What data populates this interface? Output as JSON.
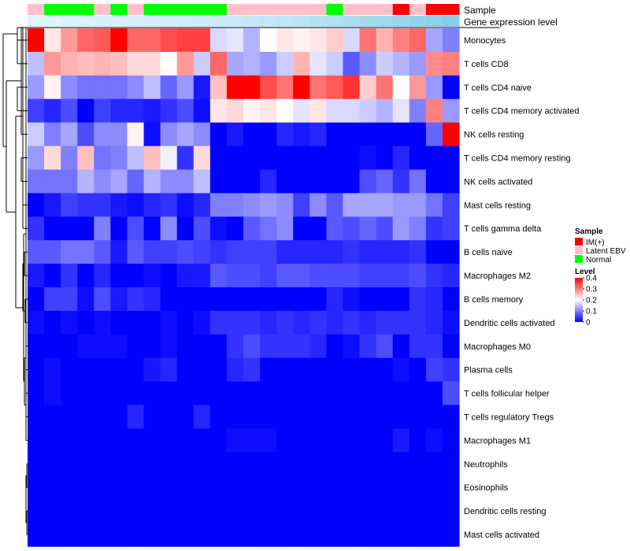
{
  "chart_data": {
    "type": "heatmap",
    "title": "",
    "annotation_tracks": [
      {
        "name": "Sample",
        "values": [
          "Latent EBV",
          "Normal",
          "Normal",
          "Normal",
          "Latent EBV",
          "Normal",
          "Latent EBV",
          "Normal",
          "Normal",
          "Normal",
          "Normal",
          "Normal",
          "Latent EBV",
          "Latent EBV",
          "Latent EBV",
          "Latent EBV",
          "Latent EBV",
          "Latent EBV",
          "Normal",
          "Latent EBV",
          "Latent EBV",
          "Latent EBV",
          "IM(+)",
          "Latent EBV",
          "IM(+)",
          "IM(+)"
        ]
      },
      {
        "name": "Gene expression level",
        "values": [
          0.05,
          0.06,
          0.08,
          0.09,
          0.1,
          0.12,
          0.13,
          0.15,
          0.16,
          0.18,
          0.2,
          0.22,
          0.24,
          0.26,
          0.3,
          0.33,
          0.36,
          0.4,
          0.45,
          0.5,
          0.55,
          0.6,
          0.65,
          0.7,
          0.75,
          0.8
        ]
      }
    ],
    "row_labels": [
      "Monocytes",
      "T cells CD8",
      "T cells CD4 naive",
      "T cells CD4 memory activated",
      "NK cells resting",
      "T cells CD4 memory resting",
      "NK cells activated",
      "Mast cells resting",
      "T cells gamma delta",
      "B cells naive",
      "Macrophages M2",
      "B cells memory",
      "Dendritic cells activated",
      "Macrophages M0",
      "Plasma cells",
      "T cells follicular helper",
      "T cells regulatory  Tregs",
      "Macrophages M1",
      "Neutrophils",
      "Eosinophils",
      "Dendritic cells resting",
      "Mast cells activated"
    ],
    "values": [
      [
        0.4,
        0.22,
        0.28,
        0.32,
        0.33,
        0.4,
        0.32,
        0.32,
        0.34,
        0.35,
        0.35,
        0.17,
        0.18,
        0.14,
        0.2,
        0.22,
        0.21,
        0.22,
        0.24,
        0.17,
        0.31,
        0.26,
        0.3,
        0.32,
        0.13,
        0.1
      ],
      [
        0.15,
        0.28,
        0.26,
        0.25,
        0.26,
        0.25,
        0.23,
        0.23,
        0.2,
        0.28,
        0.16,
        0.32,
        0.13,
        0.14,
        0.12,
        0.16,
        0.26,
        0.18,
        0.16,
        0.07,
        0.11,
        0.16,
        0.14,
        0.12,
        0.29,
        0.3
      ],
      [
        0.12,
        0.21,
        0.11,
        0.09,
        0.09,
        0.09,
        0.11,
        0.15,
        0.08,
        0.12,
        0.02,
        0.25,
        0.4,
        0.4,
        0.34,
        0.31,
        0.4,
        0.31,
        0.33,
        0.36,
        0.24,
        0.31,
        0.2,
        0.28,
        0.12,
        0.0
      ],
      [
        0.05,
        0.03,
        0.06,
        0.0,
        0.05,
        0.03,
        0.03,
        0.02,
        0.04,
        0.06,
        0.01,
        0.22,
        0.23,
        0.21,
        0.22,
        0.2,
        0.18,
        0.22,
        0.17,
        0.17,
        0.16,
        0.14,
        0.18,
        0.1,
        0.3,
        0.12
      ],
      [
        0.16,
        0.1,
        0.13,
        0.06,
        0.11,
        0.11,
        0.21,
        0.01,
        0.11,
        0.13,
        0.11,
        0.0,
        0.02,
        0.0,
        0.0,
        0.03,
        0.02,
        0.03,
        0.0,
        0.0,
        0.0,
        0.0,
        0.0,
        0.0,
        0.08,
        0.4
      ],
      [
        0.12,
        0.23,
        0.1,
        0.25,
        0.09,
        0.1,
        0.15,
        0.25,
        0.19,
        0.04,
        0.23,
        0.0,
        0.0,
        0.0,
        0.0,
        0.0,
        0.0,
        0.0,
        0.0,
        0.0,
        0.01,
        0.0,
        0.03,
        0.0,
        0.0,
        0.0
      ],
      [
        0.09,
        0.09,
        0.09,
        0.14,
        0.11,
        0.13,
        0.08,
        0.14,
        0.11,
        0.11,
        0.15,
        0.0,
        0.0,
        0.0,
        0.03,
        0.0,
        0.0,
        0.0,
        0.0,
        0.0,
        0.06,
        0.08,
        0.04,
        0.09,
        0.0,
        0.0
      ],
      [
        0.0,
        0.02,
        0.05,
        0.04,
        0.04,
        0.02,
        0.01,
        0.03,
        0.04,
        0.01,
        0.03,
        0.1,
        0.1,
        0.11,
        0.12,
        0.11,
        0.05,
        0.11,
        0.07,
        0.13,
        0.13,
        0.13,
        0.12,
        0.12,
        0.09,
        0.05
      ],
      [
        0.04,
        0.0,
        0.0,
        0.0,
        0.1,
        0.0,
        0.06,
        0.0,
        0.11,
        0.0,
        0.06,
        0.01,
        0.0,
        0.07,
        0.09,
        0.11,
        0.0,
        0.0,
        0.07,
        0.06,
        0.08,
        0.06,
        0.12,
        0.1,
        0.04,
        0.05
      ],
      [
        0.07,
        0.07,
        0.09,
        0.09,
        0.07,
        0.02,
        0.07,
        0.05,
        0.05,
        0.06,
        0.05,
        0.04,
        0.05,
        0.05,
        0.05,
        0.03,
        0.03,
        0.03,
        0.03,
        0.04,
        0.03,
        0.03,
        0.03,
        0.04,
        0.0,
        0.0
      ],
      [
        0.02,
        0.0,
        0.04,
        0.0,
        0.03,
        0.0,
        0.0,
        0.01,
        0.0,
        0.02,
        0.02,
        0.07,
        0.06,
        0.06,
        0.05,
        0.07,
        0.07,
        0.06,
        0.06,
        0.06,
        0.05,
        0.05,
        0.05,
        0.06,
        0.04,
        0.03
      ],
      [
        0.0,
        0.05,
        0.05,
        0.01,
        0.06,
        0.02,
        0.04,
        0.03,
        0.0,
        0.0,
        0.0,
        0.0,
        0.0,
        0.0,
        0.0,
        0.0,
        0.0,
        0.0,
        0.03,
        0.01,
        0.0,
        0.0,
        0.0,
        0.04,
        0.03,
        0.0
      ],
      [
        0.01,
        0.0,
        0.01,
        0.0,
        0.01,
        0.0,
        0.0,
        0.0,
        0.01,
        0.0,
        0.01,
        0.04,
        0.04,
        0.04,
        0.03,
        0.04,
        0.03,
        0.04,
        0.03,
        0.04,
        0.03,
        0.04,
        0.04,
        0.04,
        0.03,
        0.01
      ],
      [
        0.0,
        0.0,
        0.0,
        0.01,
        0.01,
        0.01,
        0.0,
        0.0,
        0.01,
        0.0,
        0.0,
        0.0,
        0.04,
        0.06,
        0.04,
        0.04,
        0.04,
        0.03,
        0.0,
        0.01,
        0.04,
        0.06,
        0.0,
        0.04,
        0.04,
        0.0
      ],
      [
        0.0,
        0.01,
        0.0,
        0.0,
        0.0,
        0.0,
        0.0,
        0.02,
        0.03,
        0.0,
        0.0,
        0.0,
        0.03,
        0.04,
        0.0,
        0.0,
        0.0,
        0.0,
        0.0,
        0.0,
        0.0,
        0.0,
        0.01,
        0.0,
        0.05,
        0.04
      ],
      [
        0.0,
        0.01,
        0.0,
        0.0,
        0.0,
        0.0,
        0.0,
        0.0,
        0.0,
        0.0,
        0.0,
        0.0,
        0.0,
        0.0,
        0.0,
        0.0,
        0.0,
        0.0,
        0.0,
        0.0,
        0.0,
        0.0,
        0.0,
        0.0,
        0.0,
        0.06
      ],
      [
        0.0,
        0.0,
        0.0,
        0.0,
        0.0,
        0.0,
        0.03,
        0.0,
        0.0,
        0.0,
        0.03,
        0.0,
        0.0,
        0.0,
        0.0,
        0.0,
        0.0,
        0.0,
        0.0,
        0.0,
        0.0,
        0.0,
        0.0,
        0.0,
        0.0,
        0.0
      ],
      [
        0.0,
        0.0,
        0.0,
        0.0,
        0.0,
        0.0,
        0.0,
        0.0,
        0.0,
        0.0,
        0.0,
        0.0,
        0.01,
        0.01,
        0.01,
        0.0,
        0.0,
        0.0,
        0.0,
        0.0,
        0.0,
        0.0,
        0.02,
        0.0,
        0.01,
        0.0
      ],
      [
        0.0,
        0.0,
        0.0,
        0.0,
        0.0,
        0.0,
        0.0,
        0.0,
        0.0,
        0.0,
        0.0,
        0.0,
        0.0,
        0.0,
        0.0,
        0.0,
        0.0,
        0.0,
        0.0,
        0.0,
        0.0,
        0.0,
        0.0,
        0.0,
        0.0,
        0.0
      ],
      [
        0.0,
        0.0,
        0.0,
        0.0,
        0.0,
        0.0,
        0.0,
        0.0,
        0.0,
        0.0,
        0.0,
        0.0,
        0.0,
        0.0,
        0.0,
        0.0,
        0.0,
        0.0,
        0.0,
        0.0,
        0.0,
        0.0,
        0.0,
        0.0,
        0.0,
        0.0
      ],
      [
        0.0,
        0.0,
        0.0,
        0.0,
        0.0,
        0.0,
        0.0,
        0.0,
        0.0,
        0.0,
        0.0,
        0.0,
        0.0,
        0.0,
        0.0,
        0.0,
        0.0,
        0.0,
        0.0,
        0.0,
        0.0,
        0.0,
        0.0,
        0.0,
        0.0,
        0.0
      ],
      [
        0.0,
        0.0,
        0.0,
        0.0,
        0.0,
        0.0,
        0.0,
        0.0,
        0.0,
        0.0,
        0.0,
        0.0,
        0.0,
        0.0,
        0.0,
        0.0,
        0.0,
        0.0,
        0.0,
        0.0,
        0.0,
        0.0,
        0.0,
        0.0,
        0.0,
        0.0
      ]
    ],
    "color_scale": {
      "stops": [
        {
          "value": 0,
          "color": "#0000ff"
        },
        {
          "value": 0.2,
          "color": "#ffffff"
        },
        {
          "value": 0.4,
          "color": "#ff0000"
        }
      ],
      "range": [
        0,
        0.4
      ]
    },
    "legend_placement": "right",
    "legends": [
      {
        "title": "Sample",
        "entries": [
          {
            "label": "IM(+)",
            "color": "#ff0000"
          },
          {
            "label": "Latent EBV",
            "color": "#ffc0cb"
          },
          {
            "label": "Normal",
            "color": "#00ff00"
          }
        ]
      },
      {
        "title": "Level",
        "ticks": [
          "0.4",
          "0.3",
          "0.2",
          "0.1",
          "0"
        ]
      }
    ],
    "expression_track_colors": {
      "low": "#e0f4fc",
      "high": "#87ceeb"
    },
    "row_dendrogram": true
  }
}
